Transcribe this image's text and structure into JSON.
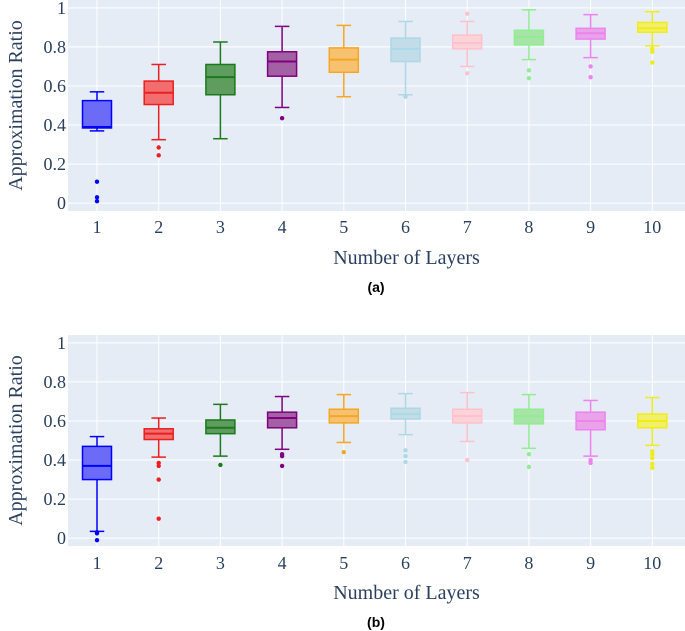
{
  "chart_data": [
    {
      "type": "box",
      "caption": "(a)",
      "xlabel": "Number of Layers",
      "ylabel": "Approximation Ratio",
      "categories": [
        "1",
        "2",
        "3",
        "4",
        "5",
        "6",
        "7",
        "8",
        "9",
        "10"
      ],
      "yticks": [
        "0",
        "0.2",
        "0.4",
        "0.6",
        "0.8",
        "1"
      ],
      "ylim": [
        -0.04,
        1.04
      ],
      "grid": true,
      "legend": "none",
      "series": [
        {
          "x": "1",
          "min": 0.37,
          "q1": 0.385,
          "median": 0.39,
          "q3": 0.525,
          "max": 0.57,
          "outliers": [
            0.11,
            0.03,
            0.01
          ]
        },
        {
          "x": "2",
          "min": 0.325,
          "q1": 0.505,
          "median": 0.565,
          "q3": 0.625,
          "max": 0.71,
          "outliers": [
            0.285,
            0.245
          ]
        },
        {
          "x": "3",
          "min": 0.33,
          "q1": 0.555,
          "median": 0.645,
          "q3": 0.71,
          "max": 0.825,
          "outliers": []
        },
        {
          "x": "4",
          "min": 0.49,
          "q1": 0.65,
          "median": 0.725,
          "q3": 0.775,
          "max": 0.905,
          "outliers": [
            0.435
          ]
        },
        {
          "x": "5",
          "min": 0.545,
          "q1": 0.67,
          "median": 0.735,
          "q3": 0.795,
          "max": 0.91,
          "outliers": []
        },
        {
          "x": "6",
          "min": 0.555,
          "q1": 0.725,
          "median": 0.79,
          "q3": 0.845,
          "max": 0.93,
          "outliers": [
            0.545
          ]
        },
        {
          "x": "7",
          "min": 0.7,
          "q1": 0.79,
          "median": 0.82,
          "q3": 0.86,
          "max": 0.93,
          "outliers": [
            0.97,
            0.665
          ]
        },
        {
          "x": "8",
          "min": 0.735,
          "q1": 0.81,
          "median": 0.85,
          "q3": 0.885,
          "max": 0.99,
          "outliers": [
            0.68,
            0.64
          ]
        },
        {
          "x": "9",
          "min": 0.745,
          "q1": 0.84,
          "median": 0.87,
          "q3": 0.895,
          "max": 0.965,
          "outliers": [
            0.7,
            0.645
          ]
        },
        {
          "x": "10",
          "min": 0.805,
          "q1": 0.875,
          "median": 0.895,
          "q3": 0.925,
          "max": 0.98,
          "outliers": [
            0.79,
            0.775,
            0.72
          ]
        }
      ]
    },
    {
      "type": "box",
      "caption": "(b)",
      "xlabel": "Number of Layers",
      "ylabel": "Approximation Ratio",
      "categories": [
        "1",
        "2",
        "3",
        "4",
        "5",
        "6",
        "7",
        "8",
        "9",
        "10"
      ],
      "yticks": [
        "0",
        "0.2",
        "0.4",
        "0.6",
        "0.8",
        "1"
      ],
      "ylim": [
        -0.04,
        1.04
      ],
      "grid": true,
      "legend": "none",
      "series": [
        {
          "x": "1",
          "min": 0.035,
          "q1": 0.3,
          "median": 0.37,
          "q3": 0.47,
          "max": 0.52,
          "outliers": [
            0.03,
            0.025,
            -0.01
          ]
        },
        {
          "x": "2",
          "min": 0.415,
          "q1": 0.505,
          "median": 0.535,
          "q3": 0.56,
          "max": 0.615,
          "outliers": [
            0.385,
            0.37,
            0.3,
            0.1
          ]
        },
        {
          "x": "3",
          "min": 0.42,
          "q1": 0.535,
          "median": 0.565,
          "q3": 0.605,
          "max": 0.685,
          "outliers": [
            0.375
          ]
        },
        {
          "x": "4",
          "min": 0.455,
          "q1": 0.565,
          "median": 0.615,
          "q3": 0.645,
          "max": 0.725,
          "outliers": [
            0.43,
            0.42,
            0.37
          ]
        },
        {
          "x": "5",
          "min": 0.49,
          "q1": 0.59,
          "median": 0.625,
          "q3": 0.66,
          "max": 0.735,
          "outliers": [
            0.44
          ]
        },
        {
          "x": "6",
          "min": 0.53,
          "q1": 0.61,
          "median": 0.635,
          "q3": 0.665,
          "max": 0.74,
          "outliers": [
            0.45,
            0.42,
            0.39
          ]
        },
        {
          "x": "7",
          "min": 0.495,
          "q1": 0.59,
          "median": 0.625,
          "q3": 0.66,
          "max": 0.745,
          "outliers": [
            0.4
          ]
        },
        {
          "x": "8",
          "min": 0.46,
          "q1": 0.585,
          "median": 0.625,
          "q3": 0.66,
          "max": 0.735,
          "outliers": [
            0.43,
            0.365
          ]
        },
        {
          "x": "9",
          "min": 0.42,
          "q1": 0.555,
          "median": 0.6,
          "q3": 0.645,
          "max": 0.705,
          "outliers": [
            0.4,
            0.385
          ]
        },
        {
          "x": "10",
          "min": 0.475,
          "q1": 0.565,
          "median": 0.6,
          "q3": 0.635,
          "max": 0.72,
          "outliers": [
            0.445,
            0.43,
            0.41,
            0.38,
            0.36
          ]
        }
      ]
    }
  ],
  "series_colors": [
    {
      "fill": "#6b6bf7",
      "line": "#0000ff"
    },
    {
      "fill": "#f26e6e",
      "line": "#ea1f1f"
    },
    {
      "fill": "#5f9d5f",
      "line": "#1b7a1b"
    },
    {
      "fill": "#a460a4",
      "line": "#800080"
    },
    {
      "fill": "#f7c270",
      "line": "#f5a623"
    },
    {
      "fill": "#c3dde8",
      "line": "#add8e6"
    },
    {
      "fill": "#fbd3d9",
      "line": "#ffc0cb"
    },
    {
      "fill": "#a8e4a8",
      "line": "#90ee90"
    },
    {
      "fill": "#e9a3e9",
      "line": "#ee82ee"
    },
    {
      "fill": "#f2f06a",
      "line": "#f0ec17"
    }
  ],
  "plot_background": "#e5ecf6",
  "grid_color": "#ffffff",
  "text_color": "#2a3f5f"
}
